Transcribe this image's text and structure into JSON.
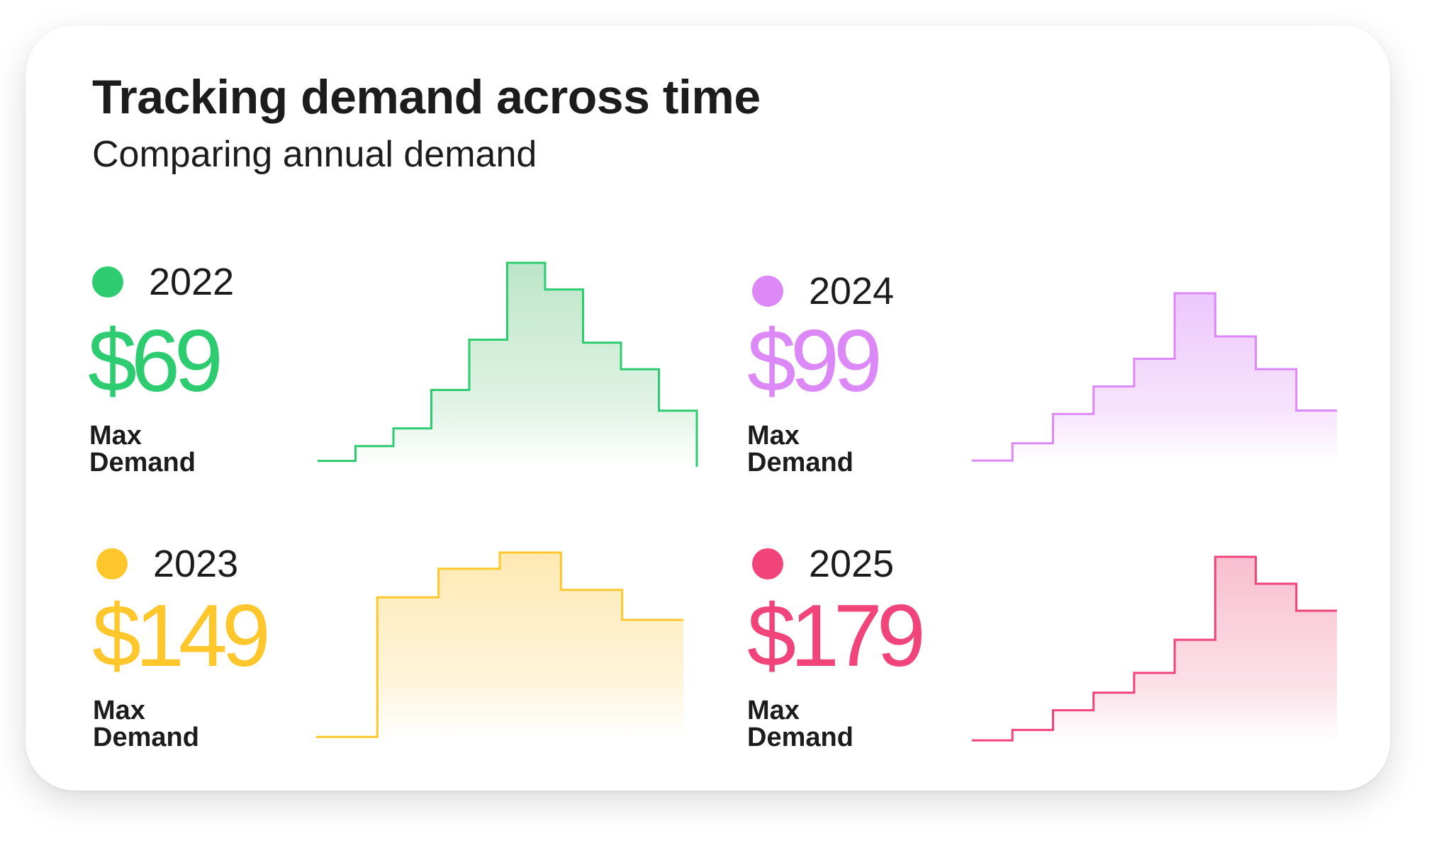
{
  "title": "Tracking demand across time",
  "subtitle": "Comparing annual demand",
  "panels": [
    {
      "year": "2022",
      "value": "$69",
      "metric": "Max Demand",
      "color": "#2ECC71",
      "fill": "#A8DDB5",
      "chart_index": 0
    },
    {
      "year": "2024",
      "value": "$99",
      "metric": "Max Demand",
      "color": "#DD88F7",
      "fill": "#E7B4FA",
      "chart_index": 1
    },
    {
      "year": "2023",
      "value": "$149",
      "metric": "Max Demand",
      "color": "#FFC72C",
      "fill": "#FFE29A",
      "chart_index": 2
    },
    {
      "year": "2025",
      "value": "$179",
      "metric": "Max Demand",
      "color": "#F0447A",
      "fill": "#F5A9C0",
      "chart_index": 3
    }
  ],
  "chart_data": [
    {
      "type": "area",
      "step": true,
      "series": "2022",
      "ylim": [
        0,
        69
      ],
      "end_drop": true,
      "values": [
        2,
        7,
        13,
        26,
        43,
        69,
        60,
        42,
        33,
        19
      ]
    },
    {
      "type": "area",
      "step": true,
      "series": "2024",
      "ylim": [
        0,
        99
      ],
      "end_drop": false,
      "values": [
        2,
        12,
        29,
        45,
        61,
        99,
        74,
        55,
        31
      ]
    },
    {
      "type": "area",
      "step": true,
      "series": "2023",
      "ylim": [
        0,
        149
      ],
      "end_drop": false,
      "values": [
        1,
        113,
        136,
        149,
        119,
        95
      ]
    },
    {
      "type": "area",
      "step": true,
      "series": "2025",
      "ylim": [
        0,
        179
      ],
      "end_drop": false,
      "values": [
        2,
        12,
        31,
        48,
        67,
        99,
        179,
        153,
        127
      ]
    }
  ]
}
